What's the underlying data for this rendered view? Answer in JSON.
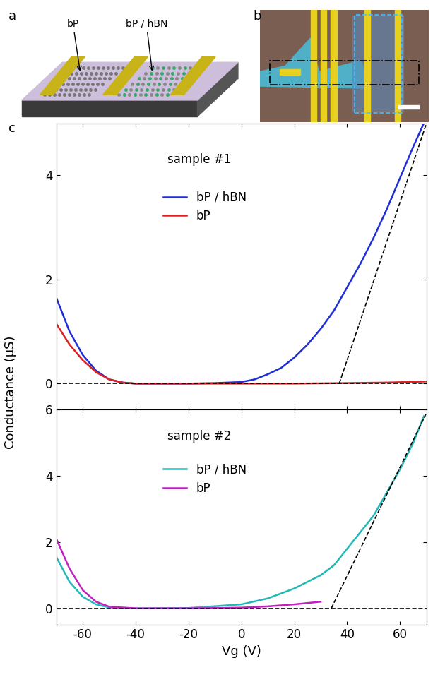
{
  "panels": {
    "a": {
      "label": "a",
      "texts": [
        "bP",
        "bP / hBN"
      ]
    },
    "b": {
      "label": "b"
    },
    "c": {
      "label": "c",
      "ylabel": "Conductance (µS)",
      "xlabel": "Vg (V)"
    }
  },
  "chart_data": [
    {
      "type": "line",
      "annotation": "sample #1",
      "legend": "upper left",
      "tick_labels": "y",
      "xlim": [
        -70,
        70
      ],
      "xticks": [
        -60,
        -40,
        -20,
        0,
        20,
        40,
        60
      ],
      "ylim": [
        -0.5,
        5
      ],
      "yticks": [
        0,
        2,
        4
      ],
      "series": [
        {
          "name": "bP / hBN",
          "color": "#1f2fd8",
          "line_style": "solid",
          "x": [
            -70,
            -65,
            -60,
            -55,
            -50,
            -45,
            -40,
            -30,
            -20,
            -10,
            0,
            5,
            10,
            15,
            20,
            25,
            30,
            35,
            40,
            45,
            50,
            55,
            60,
            65,
            69
          ],
          "values": [
            1.65,
            1.0,
            0.55,
            0.25,
            0.08,
            0.02,
            0.0,
            0.0,
            0.0,
            0.01,
            0.03,
            0.08,
            0.18,
            0.3,
            0.5,
            0.75,
            1.05,
            1.4,
            1.85,
            2.3,
            2.8,
            3.35,
            3.95,
            4.55,
            5.0
          ]
        },
        {
          "name": "bP",
          "color": "#e02020",
          "line_style": "solid",
          "x": [
            -70,
            -65,
            -60,
            -55,
            -50,
            -45,
            -40,
            -20,
            0,
            20,
            40,
            55,
            70
          ],
          "values": [
            1.15,
            0.75,
            0.45,
            0.22,
            0.08,
            0.02,
            0.0,
            0.0,
            0.0,
            0.0,
            0.01,
            0.02,
            0.04
          ]
        },
        {
          "color": "#000000",
          "line_style": "dashed",
          "x": [
            37,
            70
          ],
          "values": [
            0,
            5.0
          ]
        },
        {
          "color": "#000000",
          "line_style": "dashed",
          "x": [
            -70,
            70
          ],
          "values": [
            0,
            0
          ]
        }
      ]
    },
    {
      "type": "line",
      "annotation": "sample #2",
      "legend": "upper left",
      "xlim": [
        -70,
        70
      ],
      "xticks": [
        -60,
        -40,
        -20,
        0,
        20,
        40,
        60
      ],
      "ylim": [
        -0.5,
        6
      ],
      "yticks": [
        0,
        2,
        4,
        6
      ],
      "series": [
        {
          "name": "bP / hBN",
          "color": "#22b8b8",
          "line_style": "solid",
          "x": [
            -70,
            -65,
            -60,
            -55,
            -50,
            -40,
            -20,
            0,
            10,
            20,
            30,
            35,
            40,
            45,
            50,
            55,
            60,
            65,
            69
          ],
          "values": [
            1.55,
            0.8,
            0.35,
            0.12,
            0.03,
            0.0,
            0.01,
            0.12,
            0.3,
            0.6,
            1.0,
            1.3,
            1.8,
            2.3,
            2.8,
            3.5,
            4.2,
            5.0,
            5.8
          ]
        },
        {
          "name": "bP",
          "color": "#c020c0",
          "line_style": "solid",
          "x": [
            -70,
            -65,
            -60,
            -55,
            -50,
            -40,
            -20,
            0,
            10,
            20,
            30
          ],
          "values": [
            2.1,
            1.2,
            0.55,
            0.2,
            0.05,
            0.0,
            0.0,
            0.02,
            0.06,
            0.12,
            0.2
          ]
        },
        {
          "color": "#000000",
          "line_style": "dashed",
          "x": [
            34,
            70
          ],
          "values": [
            0,
            5.9
          ]
        },
        {
          "color": "#000000",
          "line_style": "dashed",
          "x": [
            -70,
            70
          ],
          "values": [
            0,
            0
          ]
        }
      ]
    }
  ]
}
